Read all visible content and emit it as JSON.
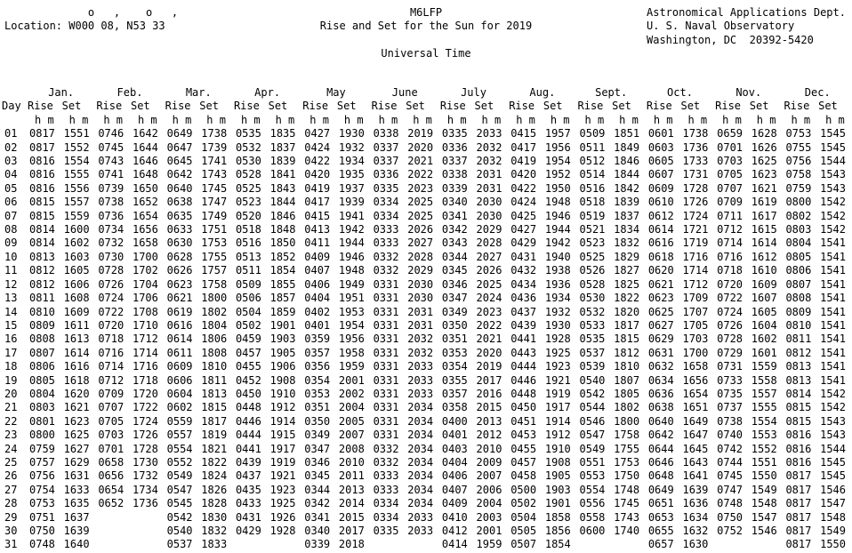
{
  "header": {
    "coord_symbols": "             o   ,    o   ,",
    "location_line": "Location: W000 08, N53 33",
    "station": "M6LFP",
    "title": "Rise and Set for the Sun for 2019",
    "timezone": "Universal Time",
    "org_line1": "Astronomical Applications Dept.",
    "org_line2": "U. S. Naval Observatory",
    "org_line3": "Washington, DC  20392-5420"
  },
  "table": {
    "day_label": "Day",
    "rise_label": "Rise",
    "set_label": "Set",
    "unit_label": "h m",
    "months": [
      "Jan.",
      "Feb.",
      "Mar.",
      "Apr.",
      "May",
      "June",
      "July",
      "Aug.",
      "Sept.",
      "Oct.",
      "Nov.",
      "Dec."
    ],
    "rows": [
      {
        "day": "01",
        "values": [
          "0817",
          "1551",
          "0746",
          "1642",
          "0649",
          "1738",
          "0535",
          "1835",
          "0427",
          "1930",
          "0338",
          "2019",
          "0335",
          "2033",
          "0415",
          "1957",
          "0509",
          "1851",
          "0601",
          "1738",
          "0659",
          "1628",
          "0753",
          "1545"
        ]
      },
      {
        "day": "02",
        "values": [
          "0817",
          "1552",
          "0745",
          "1644",
          "0647",
          "1739",
          "0532",
          "1837",
          "0424",
          "1932",
          "0337",
          "2020",
          "0336",
          "2032",
          "0417",
          "1956",
          "0511",
          "1849",
          "0603",
          "1736",
          "0701",
          "1626",
          "0755",
          "1545"
        ]
      },
      {
        "day": "03",
        "values": [
          "0816",
          "1554",
          "0743",
          "1646",
          "0645",
          "1741",
          "0530",
          "1839",
          "0422",
          "1934",
          "0337",
          "2021",
          "0337",
          "2032",
          "0419",
          "1954",
          "0512",
          "1846",
          "0605",
          "1733",
          "0703",
          "1625",
          "0756",
          "1544"
        ]
      },
      {
        "day": "04",
        "values": [
          "0816",
          "1555",
          "0741",
          "1648",
          "0642",
          "1743",
          "0528",
          "1841",
          "0420",
          "1935",
          "0336",
          "2022",
          "0338",
          "2031",
          "0420",
          "1952",
          "0514",
          "1844",
          "0607",
          "1731",
          "0705",
          "1623",
          "0758",
          "1543"
        ]
      },
      {
        "day": "05",
        "values": [
          "0816",
          "1556",
          "0739",
          "1650",
          "0640",
          "1745",
          "0525",
          "1843",
          "0419",
          "1937",
          "0335",
          "2023",
          "0339",
          "2031",
          "0422",
          "1950",
          "0516",
          "1842",
          "0609",
          "1728",
          "0707",
          "1621",
          "0759",
          "1543"
        ]
      },
      {
        "day": "06",
        "values": [
          "0815",
          "1557",
          "0738",
          "1652",
          "0638",
          "1747",
          "0523",
          "1844",
          "0417",
          "1939",
          "0334",
          "2025",
          "0340",
          "2030",
          "0424",
          "1948",
          "0518",
          "1839",
          "0610",
          "1726",
          "0709",
          "1619",
          "0800",
          "1542"
        ]
      },
      {
        "day": "07",
        "values": [
          "0815",
          "1559",
          "0736",
          "1654",
          "0635",
          "1749",
          "0520",
          "1846",
          "0415",
          "1941",
          "0334",
          "2025",
          "0341",
          "2030",
          "0425",
          "1946",
          "0519",
          "1837",
          "0612",
          "1724",
          "0711",
          "1617",
          "0802",
          "1542"
        ]
      },
      {
        "day": "08",
        "values": [
          "0814",
          "1600",
          "0734",
          "1656",
          "0633",
          "1751",
          "0518",
          "1848",
          "0413",
          "1942",
          "0333",
          "2026",
          "0342",
          "2029",
          "0427",
          "1944",
          "0521",
          "1834",
          "0614",
          "1721",
          "0712",
          "1615",
          "0803",
          "1542"
        ]
      },
      {
        "day": "09",
        "values": [
          "0814",
          "1602",
          "0732",
          "1658",
          "0630",
          "1753",
          "0516",
          "1850",
          "0411",
          "1944",
          "0333",
          "2027",
          "0343",
          "2028",
          "0429",
          "1942",
          "0523",
          "1832",
          "0616",
          "1719",
          "0714",
          "1614",
          "0804",
          "1541"
        ]
      },
      {
        "day": "10",
        "values": [
          "0813",
          "1603",
          "0730",
          "1700",
          "0628",
          "1755",
          "0513",
          "1852",
          "0409",
          "1946",
          "0332",
          "2028",
          "0344",
          "2027",
          "0431",
          "1940",
          "0525",
          "1829",
          "0618",
          "1716",
          "0716",
          "1612",
          "0805",
          "1541"
        ]
      },
      {
        "day": "11",
        "values": [
          "0812",
          "1605",
          "0728",
          "1702",
          "0626",
          "1757",
          "0511",
          "1854",
          "0407",
          "1948",
          "0332",
          "2029",
          "0345",
          "2026",
          "0432",
          "1938",
          "0526",
          "1827",
          "0620",
          "1714",
          "0718",
          "1610",
          "0806",
          "1541"
        ]
      },
      {
        "day": "12",
        "values": [
          "0812",
          "1606",
          "0726",
          "1704",
          "0623",
          "1758",
          "0509",
          "1855",
          "0406",
          "1949",
          "0331",
          "2030",
          "0346",
          "2025",
          "0434",
          "1936",
          "0528",
          "1825",
          "0621",
          "1712",
          "0720",
          "1609",
          "0807",
          "1541"
        ]
      },
      {
        "day": "13",
        "values": [
          "0811",
          "1608",
          "0724",
          "1706",
          "0621",
          "1800",
          "0506",
          "1857",
          "0404",
          "1951",
          "0331",
          "2030",
          "0347",
          "2024",
          "0436",
          "1934",
          "0530",
          "1822",
          "0623",
          "1709",
          "0722",
          "1607",
          "0808",
          "1541"
        ]
      },
      {
        "day": "14",
        "values": [
          "0810",
          "1609",
          "0722",
          "1708",
          "0619",
          "1802",
          "0504",
          "1859",
          "0402",
          "1953",
          "0331",
          "2031",
          "0349",
          "2023",
          "0437",
          "1932",
          "0532",
          "1820",
          "0625",
          "1707",
          "0724",
          "1605",
          "0809",
          "1541"
        ]
      },
      {
        "day": "15",
        "values": [
          "0809",
          "1611",
          "0720",
          "1710",
          "0616",
          "1804",
          "0502",
          "1901",
          "0401",
          "1954",
          "0331",
          "2031",
          "0350",
          "2022",
          "0439",
          "1930",
          "0533",
          "1817",
          "0627",
          "1705",
          "0726",
          "1604",
          "0810",
          "1541"
        ]
      },
      {
        "day": "16",
        "values": [
          "0808",
          "1613",
          "0718",
          "1712",
          "0614",
          "1806",
          "0459",
          "1903",
          "0359",
          "1956",
          "0331",
          "2032",
          "0351",
          "2021",
          "0441",
          "1928",
          "0535",
          "1815",
          "0629",
          "1703",
          "0728",
          "1602",
          "0811",
          "1541"
        ]
      },
      {
        "day": "17",
        "values": [
          "0807",
          "1614",
          "0716",
          "1714",
          "0611",
          "1808",
          "0457",
          "1905",
          "0357",
          "1958",
          "0331",
          "2032",
          "0353",
          "2020",
          "0443",
          "1925",
          "0537",
          "1812",
          "0631",
          "1700",
          "0729",
          "1601",
          "0812",
          "1541"
        ]
      },
      {
        "day": "18",
        "values": [
          "0806",
          "1616",
          "0714",
          "1716",
          "0609",
          "1810",
          "0455",
          "1906",
          "0356",
          "1959",
          "0331",
          "2033",
          "0354",
          "2019",
          "0444",
          "1923",
          "0539",
          "1810",
          "0632",
          "1658",
          "0731",
          "1559",
          "0813",
          "1541"
        ]
      },
      {
        "day": "19",
        "values": [
          "0805",
          "1618",
          "0712",
          "1718",
          "0606",
          "1811",
          "0452",
          "1908",
          "0354",
          "2001",
          "0331",
          "2033",
          "0355",
          "2017",
          "0446",
          "1921",
          "0540",
          "1807",
          "0634",
          "1656",
          "0733",
          "1558",
          "0813",
          "1541"
        ]
      },
      {
        "day": "20",
        "values": [
          "0804",
          "1620",
          "0709",
          "1720",
          "0604",
          "1813",
          "0450",
          "1910",
          "0353",
          "2002",
          "0331",
          "2033",
          "0357",
          "2016",
          "0448",
          "1919",
          "0542",
          "1805",
          "0636",
          "1654",
          "0735",
          "1557",
          "0814",
          "1542"
        ]
      },
      {
        "day": "21",
        "values": [
          "0803",
          "1621",
          "0707",
          "1722",
          "0602",
          "1815",
          "0448",
          "1912",
          "0351",
          "2004",
          "0331",
          "2034",
          "0358",
          "2015",
          "0450",
          "1917",
          "0544",
          "1802",
          "0638",
          "1651",
          "0737",
          "1555",
          "0815",
          "1542"
        ]
      },
      {
        "day": "22",
        "values": [
          "0801",
          "1623",
          "0705",
          "1724",
          "0559",
          "1817",
          "0446",
          "1914",
          "0350",
          "2005",
          "0331",
          "2034",
          "0400",
          "2013",
          "0451",
          "1914",
          "0546",
          "1800",
          "0640",
          "1649",
          "0738",
          "1554",
          "0815",
          "1543"
        ]
      },
      {
        "day": "23",
        "values": [
          "0800",
          "1625",
          "0703",
          "1726",
          "0557",
          "1819",
          "0444",
          "1915",
          "0349",
          "2007",
          "0331",
          "2034",
          "0401",
          "2012",
          "0453",
          "1912",
          "0547",
          "1758",
          "0642",
          "1647",
          "0740",
          "1553",
          "0816",
          "1543"
        ]
      },
      {
        "day": "24",
        "values": [
          "0759",
          "1627",
          "0701",
          "1728",
          "0554",
          "1821",
          "0441",
          "1917",
          "0347",
          "2008",
          "0332",
          "2034",
          "0403",
          "2010",
          "0455",
          "1910",
          "0549",
          "1755",
          "0644",
          "1645",
          "0742",
          "1552",
          "0816",
          "1544"
        ]
      },
      {
        "day": "25",
        "values": [
          "0757",
          "1629",
          "0658",
          "1730",
          "0552",
          "1822",
          "0439",
          "1919",
          "0346",
          "2010",
          "0332",
          "2034",
          "0404",
          "2009",
          "0457",
          "1908",
          "0551",
          "1753",
          "0646",
          "1643",
          "0744",
          "1551",
          "0816",
          "1545"
        ]
      },
      {
        "day": "26",
        "values": [
          "0756",
          "1631",
          "0656",
          "1732",
          "0549",
          "1824",
          "0437",
          "1921",
          "0345",
          "2011",
          "0333",
          "2034",
          "0406",
          "2007",
          "0458",
          "1905",
          "0553",
          "1750",
          "0648",
          "1641",
          "0745",
          "1550",
          "0817",
          "1545"
        ]
      },
      {
        "day": "27",
        "values": [
          "0754",
          "1633",
          "0654",
          "1734",
          "0547",
          "1826",
          "0435",
          "1923",
          "0344",
          "2013",
          "0333",
          "2034",
          "0407",
          "2006",
          "0500",
          "1903",
          "0554",
          "1748",
          "0649",
          "1639",
          "0747",
          "1549",
          "0817",
          "1546"
        ]
      },
      {
        "day": "28",
        "values": [
          "0753",
          "1635",
          "0652",
          "1736",
          "0545",
          "1828",
          "0433",
          "1925",
          "0342",
          "2014",
          "0334",
          "2034",
          "0409",
          "2004",
          "0502",
          "1901",
          "0556",
          "1745",
          "0651",
          "1636",
          "0748",
          "1548",
          "0817",
          "1547"
        ]
      },
      {
        "day": "29",
        "values": [
          "0751",
          "1637",
          "",
          "",
          "0542",
          "1830",
          "0431",
          "1926",
          "0341",
          "2015",
          "0334",
          "2033",
          "0410",
          "2003",
          "0504",
          "1858",
          "0558",
          "1743",
          "0653",
          "1634",
          "0750",
          "1547",
          "0817",
          "1548"
        ]
      },
      {
        "day": "30",
        "values": [
          "0750",
          "1639",
          "",
          "",
          "0540",
          "1832",
          "0429",
          "1928",
          "0340",
          "2017",
          "0335",
          "2033",
          "0412",
          "2001",
          "0505",
          "1856",
          "0600",
          "1740",
          "0655",
          "1632",
          "0752",
          "1546",
          "0817",
          "1549"
        ]
      },
      {
        "day": "31",
        "values": [
          "0748",
          "1640",
          "",
          "",
          "0537",
          "1833",
          "",
          "",
          "0339",
          "2018",
          "",
          "",
          "0414",
          "1959",
          "0507",
          "1854",
          "",
          "",
          "0657",
          "1630",
          "",
          "",
          "0817",
          "1550"
        ]
      }
    ]
  }
}
